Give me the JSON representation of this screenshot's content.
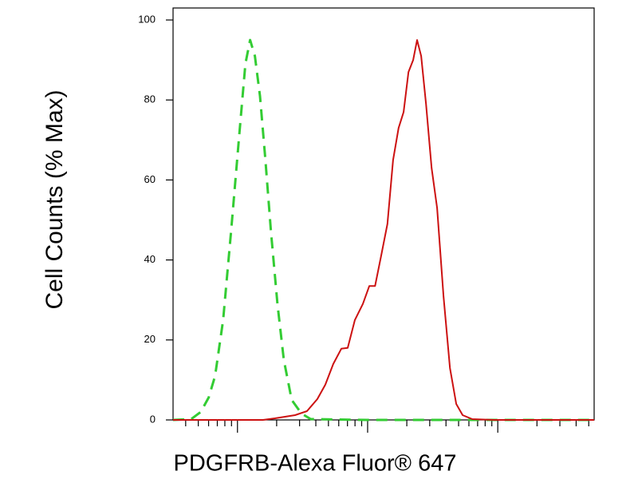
{
  "chart_data": {
    "type": "line",
    "xlabel": "PDGFRB-Alexa Fluor® 647",
    "ylabel": "Cell Counts (% Max)",
    "xlog": true,
    "xlim": [
      3.2,
      5500
    ],
    "ylim": [
      0,
      103
    ],
    "xticks": [
      4,
      5,
      6,
      7,
      8,
      9,
      10,
      20,
      30,
      40,
      50,
      60,
      70,
      80,
      90,
      100,
      200,
      300,
      400,
      500,
      600,
      700,
      800,
      900,
      1000,
      2000,
      3000,
      4000,
      5000
    ],
    "yticks": [
      0,
      20,
      40,
      60,
      80,
      100
    ],
    "series": [
      {
        "color": "#33cc33",
        "dashed": true,
        "x": [
          3.2,
          4.41,
          5.22,
          6.01,
          6.73,
          7.76,
          8.93,
          10.3,
          11.5,
          12.5,
          13.6,
          14.9,
          16.4,
          18.1,
          20.3,
          22.7,
          26.1,
          31.0,
          36.6,
          100,
          713,
          5500
        ],
        "values": [
          0,
          0.2,
          2,
          5.6,
          11,
          25,
          47,
          71,
          89,
          95,
          91,
          81,
          65,
          47,
          29,
          15,
          5,
          1.6,
          0.2,
          0,
          0,
          0
        ]
      },
      {
        "color": "#cc1111",
        "dashed": false,
        "x": [
          3.2,
          15.7,
          19.4,
          27.7,
          34.2,
          41.1,
          47.3,
          54.5,
          62.8,
          70.3,
          79.8,
          91.9,
          103,
          114,
          127,
          142,
          157,
          173,
          189,
          206,
          224,
          240,
          258,
          281,
          310,
          342,
          383,
          429,
          480,
          537,
          637,
          944,
          5500
        ],
        "values": [
          0,
          0,
          0.4,
          1.2,
          2.2,
          5.2,
          8.8,
          14,
          17.8,
          18,
          25,
          29,
          33.5,
          33.5,
          41,
          49,
          65,
          73,
          77,
          87,
          90,
          95,
          91,
          79,
          63,
          53,
          31,
          13,
          4,
          1.2,
          0.2,
          0,
          0
        ]
      }
    ]
  }
}
